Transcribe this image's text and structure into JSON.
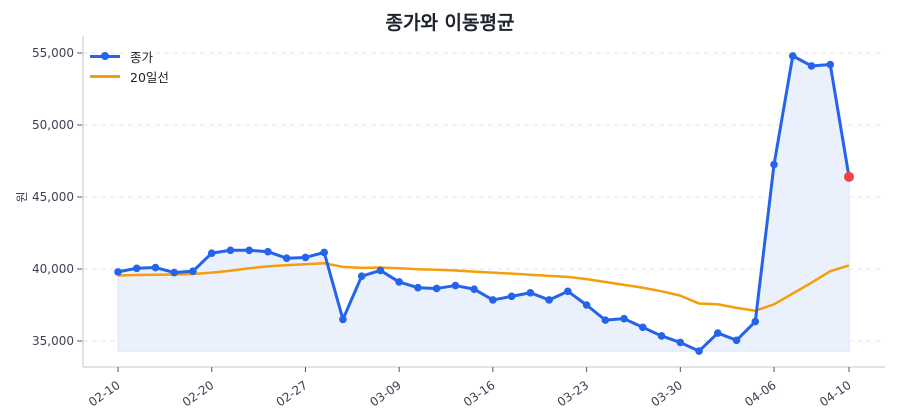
{
  "chart_data": {
    "type": "line",
    "title": "종가와 이동평균",
    "xlabel": "",
    "ylabel": "원",
    "ylim": [
      33500,
      56000
    ],
    "yticks": [
      35000,
      40000,
      45000,
      50000,
      55000
    ],
    "ytick_labels": [
      "35,000",
      "40,000",
      "45,000",
      "50,000",
      "55,000"
    ],
    "xtick_labels": [
      "02-10",
      "02-20",
      "02-27",
      "03-09",
      "03-16",
      "03-23",
      "03-30",
      "04-06",
      "04-10"
    ],
    "xtick_indices": [
      0,
      5,
      10,
      15,
      20,
      25,
      30,
      35,
      39
    ],
    "grid": true,
    "legend_position": "upper left",
    "fill_baseline": 34300,
    "series": [
      {
        "name": "종가",
        "color": "#2563eb",
        "marker": "circle",
        "values": [
          39800,
          40050,
          40100,
          39750,
          39850,
          41100,
          41300,
          41300,
          41200,
          40750,
          40800,
          41150,
          36500,
          39500,
          39900,
          39100,
          38700,
          38650,
          38850,
          38600,
          37850,
          38100,
          38350,
          37850,
          38450,
          37500,
          36450,
          36550,
          35950,
          35350,
          34900,
          34300,
          35550,
          35050,
          36350,
          47250,
          54800,
          54100,
          54200,
          46400
        ]
      },
      {
        "name": "20일선",
        "color": "#f59e0b",
        "values": [
          39550,
          39580,
          39600,
          39620,
          39650,
          39750,
          39880,
          40050,
          40180,
          40270,
          40330,
          40400,
          40150,
          40080,
          40100,
          40050,
          39980,
          39950,
          39900,
          39820,
          39750,
          39680,
          39600,
          39520,
          39450,
          39300,
          39100,
          38900,
          38700,
          38450,
          38150,
          37600,
          37550,
          37300,
          37100,
          37550,
          38300,
          39050,
          39850,
          40250
        ]
      }
    ],
    "highlight_last_point": {
      "value": 46400,
      "color": "#ef4444"
    }
  },
  "legend": {
    "items": [
      {
        "label": "종가",
        "color": "#2563eb"
      },
      {
        "label": "20일선",
        "color": "#f59e0b"
      }
    ]
  }
}
